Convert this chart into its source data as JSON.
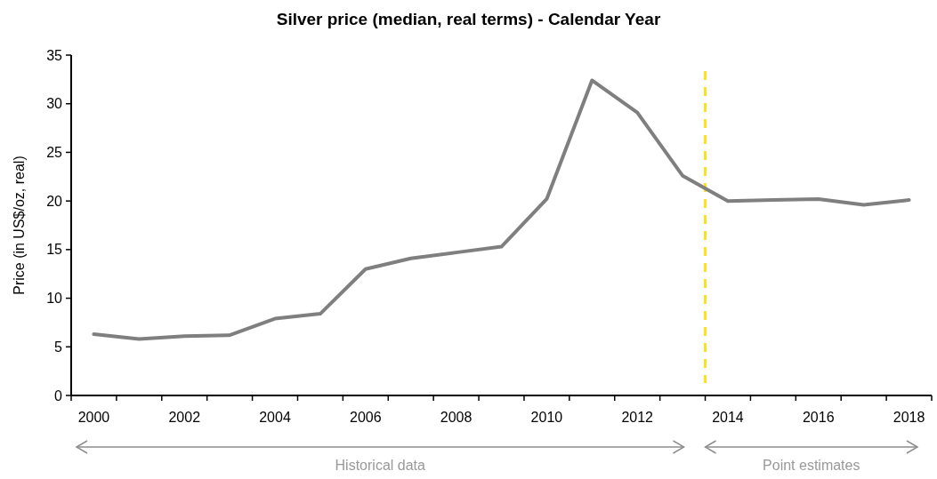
{
  "chart_data": {
    "type": "line",
    "title": "Silver price (median, real terms) - Calendar Year",
    "ylabel": "Price (in US$/oz, real)",
    "x": [
      2000,
      2001,
      2002,
      2003,
      2004,
      2005,
      2006,
      2007,
      2008,
      2009,
      2010,
      2011,
      2012,
      2013,
      2014,
      2015,
      2016,
      2017,
      2018
    ],
    "series": [
      {
        "color": "#7f7f7f",
        "values": [
          6.3,
          5.8,
          6.1,
          6.2,
          7.9,
          8.4,
          13.0,
          14.1,
          14.7,
          15.3,
          20.2,
          32.4,
          29.1,
          22.6,
          20.0,
          20.1,
          20.2,
          19.6,
          20.1
        ]
      }
    ],
    "xlim": [
      1999.5,
      2018.5
    ],
    "xticks": [
      2000,
      2002,
      2004,
      2006,
      2008,
      2010,
      2012,
      2014,
      2016,
      2018,
      {
        "value": 1999.5,
        "label": null
      },
      {
        "value": 2000.5,
        "label": null
      },
      {
        "value": 2001.5,
        "label": null
      },
      {
        "value": 2002.5,
        "label": null
      },
      {
        "value": 2003.5,
        "label": null
      },
      {
        "value": 2004.5,
        "label": null
      },
      {
        "value": 2005.5,
        "label": null
      },
      {
        "value": 2006.5,
        "label": null
      },
      {
        "value": 2007.5,
        "label": null
      },
      {
        "value": 2008.5,
        "label": null
      },
      {
        "value": 2009.5,
        "label": null
      },
      {
        "value": 2010.5,
        "label": null
      },
      {
        "value": 2011.5,
        "label": null
      },
      {
        "value": 2012.5,
        "label": null
      },
      {
        "value": 2013.5,
        "label": null
      },
      {
        "value": 2014.5,
        "label": null
      },
      {
        "value": 2015.5,
        "label": null
      },
      {
        "value": 2016.5,
        "label": null
      },
      {
        "value": 2017.5,
        "label": null
      },
      {
        "value": 2018.5,
        "label": null
      }
    ],
    "ylim": [
      0,
      35
    ],
    "yticks": [
      0,
      5,
      10,
      15,
      20,
      25,
      30,
      35
    ],
    "ref_lines": [
      {
        "axis": "x",
        "value": 2013.5,
        "color": "#ffe11a",
        "line_style": "dashed"
      }
    ],
    "annotations": [
      "Historical data",
      "Point estimates"
    ],
    "grid": false,
    "marker": "none",
    "line_style": "solid"
  }
}
